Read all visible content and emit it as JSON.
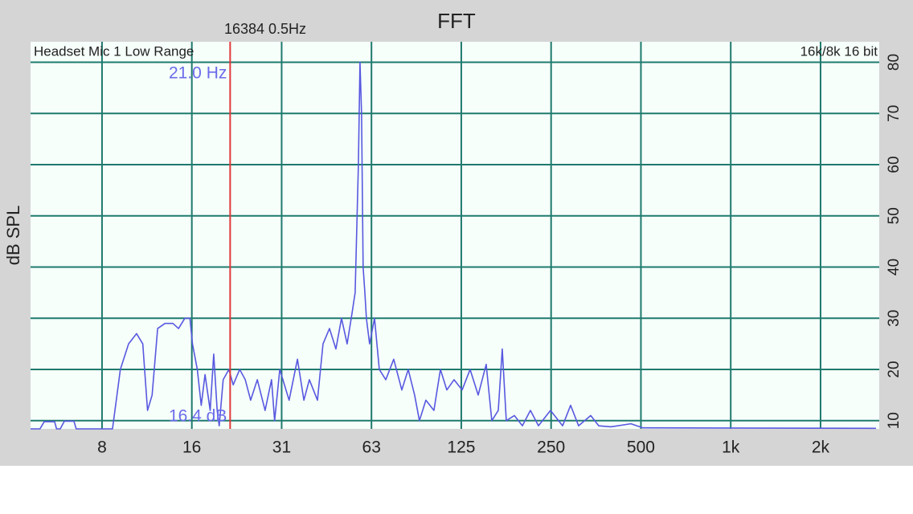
{
  "chart_data": {
    "type": "line",
    "title": "FFT",
    "subtitle": "16384  0.5Hz",
    "source_label": "Headset Mic 1 Low Range",
    "format_label": "16k/8k 16 bit",
    "y_label": "dB SPL",
    "x_log": true,
    "grid": true,
    "xlim": [
      4.5,
      3146
    ],
    "ylim": [
      8.4,
      84
    ],
    "xticks": [
      {
        "value": 7.8125,
        "label": "8"
      },
      {
        "value": 15.625,
        "label": "16"
      },
      {
        "value": 31.25,
        "label": "31"
      },
      {
        "value": 62.5,
        "label": "63"
      },
      {
        "value": 125,
        "label": "125"
      },
      {
        "value": 250,
        "label": "250"
      },
      {
        "value": 500,
        "label": "500"
      },
      {
        "value": 1000,
        "label": "1k"
      },
      {
        "value": 2000,
        "label": "2k"
      }
    ],
    "yticks": [
      10,
      20,
      30,
      40,
      50,
      60,
      70,
      80
    ],
    "cursor": {
      "x": 21.0,
      "x_label": "21.0 Hz",
      "y": 16.4,
      "y_label": "16.4 dB",
      "color": "#e03a3a"
    },
    "series": [
      {
        "name": "Headset Mic 1",
        "color": "#5858e0",
        "x": [
          4.5,
          4.84,
          5.0,
          5.16,
          5.42,
          5.5,
          5.66,
          5.84,
          6.0,
          6.29,
          6.4,
          6.61,
          8.47,
          9.0,
          9.59,
          10.2,
          10.7,
          11.1,
          11.5,
          12.0,
          12.7,
          13.5,
          14.1,
          14.8,
          15.4,
          15.7,
          16.3,
          16.8,
          17.3,
          18.0,
          18.5,
          19.0,
          19.3,
          19.9,
          20.8,
          21.5,
          22.6,
          23.6,
          24.6,
          25.9,
          27.5,
          28.9,
          29.6,
          30.8,
          33.1,
          35.3,
          37.1,
          38.7,
          41.2,
          43.0,
          45.2,
          47.5,
          49.6,
          51.8,
          53.8,
          55.1,
          56.5,
          57.2,
          57.9,
          58.6,
          59.4,
          60.1,
          61.6,
          64.0,
          66.4,
          69.8,
          74.2,
          79.0,
          83.0,
          87.2,
          90.5,
          95.1,
          101.2,
          106.4,
          111.8,
          118.2,
          125.8,
          133.8,
          142.4,
          151.5,
          158.2,
          166.3,
          171.5,
          176.9,
          188.3,
          200.3,
          213.1,
          226.8,
          248.8,
          273.2,
          290.6,
          309.1,
          339.4,
          361.0,
          396.2,
          462.7,
          507.7,
          3067
        ],
        "values": [
          8.4,
          8.4,
          9.8,
          9.8,
          9.8,
          8.4,
          8.4,
          9.9,
          9.9,
          9.9,
          8.4,
          8.4,
          8.4,
          20,
          25,
          27,
          25,
          12,
          15,
          28,
          29,
          29,
          28,
          30,
          30,
          25,
          20,
          13,
          19,
          12,
          23,
          12,
          9,
          18,
          20,
          17,
          20,
          18,
          14,
          18,
          12,
          18,
          10,
          20,
          14,
          22,
          14,
          18,
          14,
          25,
          28,
          24,
          30,
          25,
          31,
          35,
          60,
          80,
          70,
          40,
          35,
          30,
          25,
          30,
          20,
          18,
          22,
          16,
          20,
          15,
          10,
          14,
          12,
          20,
          16,
          18,
          16,
          20,
          15,
          21,
          10,
          12,
          24,
          10,
          11,
          9,
          12,
          9,
          12,
          9,
          13,
          9,
          11,
          9,
          8.8,
          9.4,
          8.6,
          8.5
        ]
      }
    ]
  }
}
